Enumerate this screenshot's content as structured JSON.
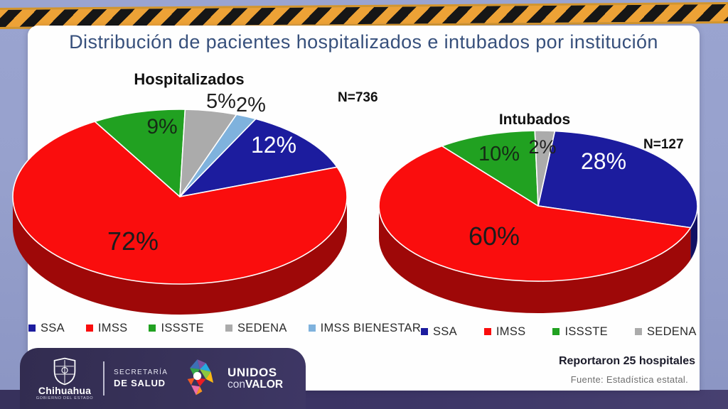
{
  "slide": {
    "title": "Distribución de pacientes hospitalizados e intubados por institución"
  },
  "chart_data": [
    {
      "type": "pie",
      "style": "3d-pie",
      "title": "Hospitalizados",
      "n_label": "N=736",
      "labels": [
        "SSA",
        "IMSS",
        "ISSSTE",
        "SEDENA",
        "IMSS BIENESTAR"
      ],
      "values": [
        12,
        72,
        9,
        5,
        2
      ],
      "unit": "%",
      "colors": [
        "#1c1c9e",
        "#fa0d0d",
        "#21a121",
        "#ababab",
        "#7fb2dd"
      ],
      "legend_position": "bottom"
    },
    {
      "type": "pie",
      "style": "3d-pie",
      "title": "Intubados",
      "n_label": "N=127",
      "labels": [
        "SSA",
        "IMSS",
        "ISSSTE",
        "SEDENA"
      ],
      "values": [
        28,
        60,
        10,
        2
      ],
      "unit": "%",
      "colors": [
        "#1c1c9e",
        "#fa0d0d",
        "#21a121",
        "#ababab"
      ],
      "legend_position": "bottom"
    }
  ],
  "source": {
    "reported": "Reportaron 25 hospitales",
    "fuente": "Fuente: Estadística estatal."
  },
  "footer": {
    "state_name": "Chihuahua",
    "state_sub": "GOBIERNO DEL ESTADO",
    "ministry_line1": "SECRETARÍA",
    "ministry_line2": "DE SALUD",
    "brand_line1": "UNIDOS",
    "brand_con": "con",
    "brand_valor": "VALOR"
  }
}
